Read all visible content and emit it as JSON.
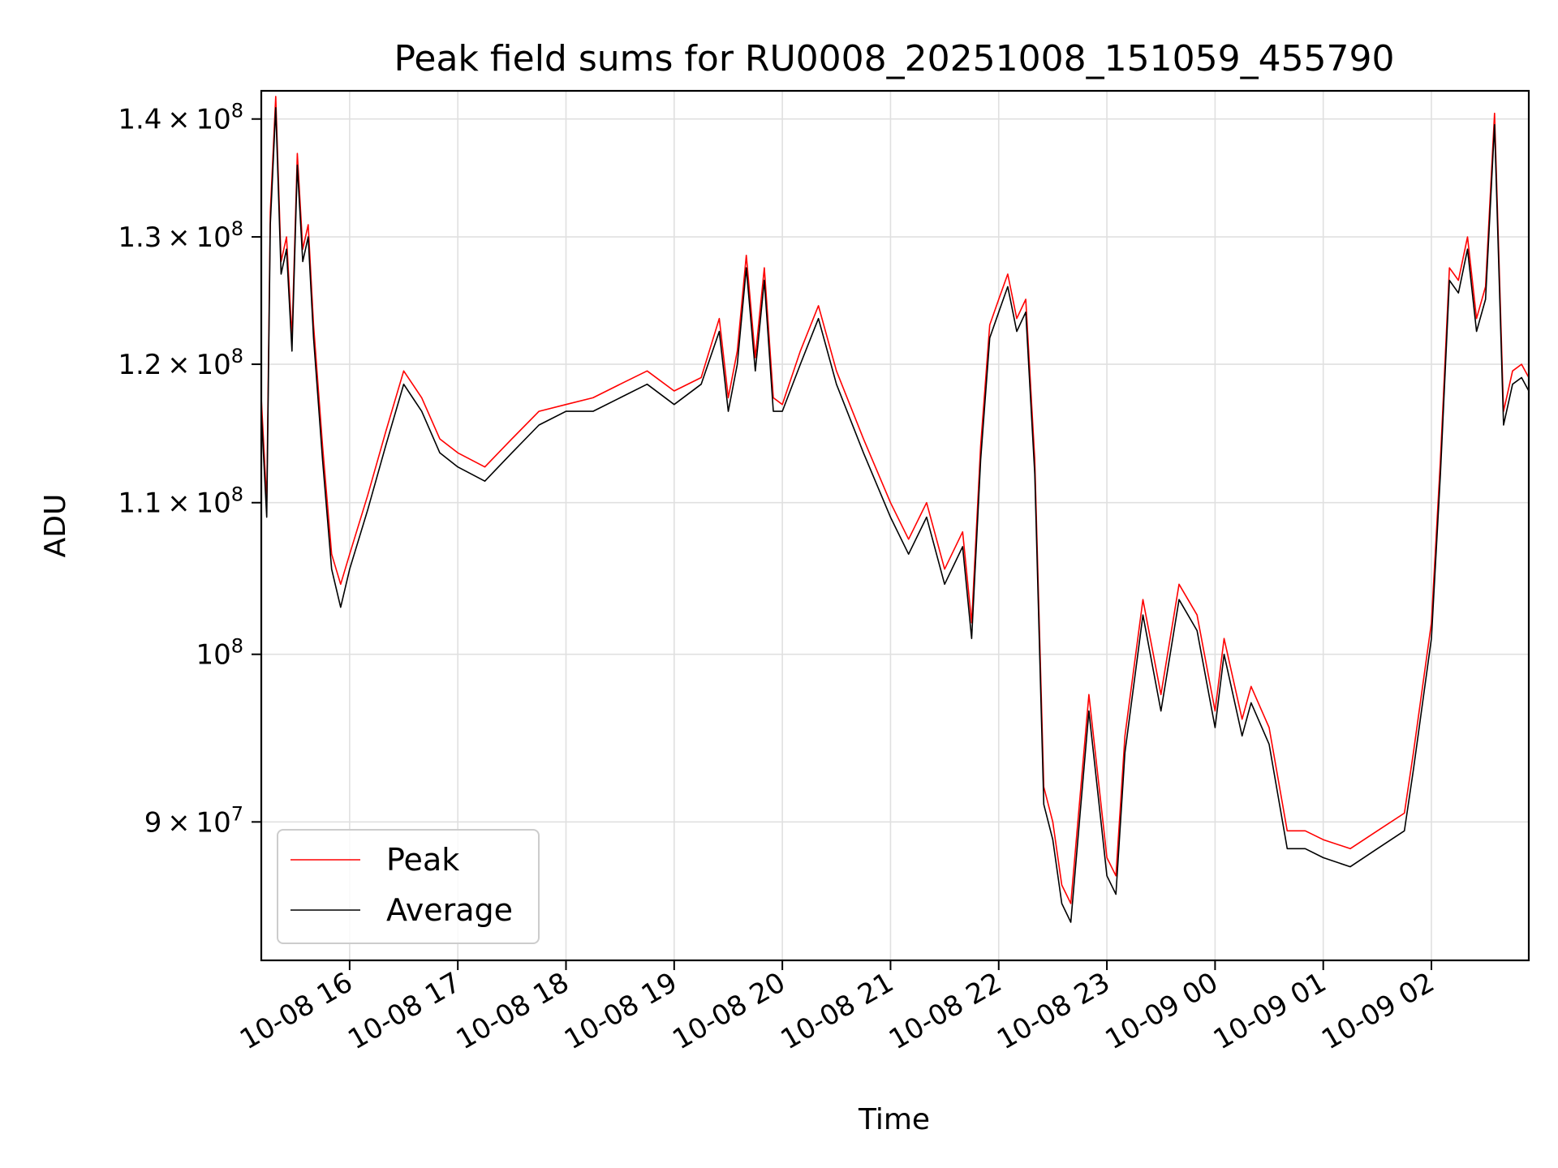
{
  "chart_data": {
    "type": "line",
    "title": "Peak field sums for RU0008_20251008_151059_455790",
    "xlabel": "Time",
    "ylabel": "ADU",
    "yscale": "log",
    "grid": true,
    "legend_position": "lower-left",
    "xlim": [
      "2025-10-08 15:11",
      "2025-10-09 02:54"
    ],
    "ylim": [
      82500000,
      142500000
    ],
    "x_ticks": [
      "10-08 16",
      "10-08 17",
      "10-08 18",
      "10-08 19",
      "10-08 20",
      "10-08 21",
      "10-08 22",
      "10-08 23",
      "10-09 00",
      "10-09 01",
      "10-09 02"
    ],
    "y_ticks": [
      {
        "value": 90000000,
        "mantissa": "9",
        "exponent": "7"
      },
      {
        "value": 100000000,
        "mantissa": "",
        "exponent": "8"
      },
      {
        "value": 110000000,
        "mantissa": "1.1",
        "exponent": "8"
      },
      {
        "value": 120000000,
        "mantissa": "1.2",
        "exponent": "8"
      },
      {
        "value": 130000000,
        "mantissa": "1.3",
        "exponent": "8"
      },
      {
        "value": 140000000,
        "mantissa": "1.4",
        "exponent": "8"
      }
    ],
    "x": [
      "2025-10-08 15:11",
      "2025-10-08 15:14",
      "2025-10-08 15:16",
      "2025-10-08 15:19",
      "2025-10-08 15:22",
      "2025-10-08 15:25",
      "2025-10-08 15:28",
      "2025-10-08 15:31",
      "2025-10-08 15:34",
      "2025-10-08 15:37",
      "2025-10-08 15:40",
      "2025-10-08 15:45",
      "2025-10-08 15:50",
      "2025-10-08 15:55",
      "2025-10-08 16:00",
      "2025-10-08 16:10",
      "2025-10-08 16:20",
      "2025-10-08 16:30",
      "2025-10-08 16:40",
      "2025-10-08 16:50",
      "2025-10-08 17:00",
      "2025-10-08 17:15",
      "2025-10-08 17:30",
      "2025-10-08 17:45",
      "2025-10-08 18:00",
      "2025-10-08 18:15",
      "2025-10-08 18:30",
      "2025-10-08 18:45",
      "2025-10-08 19:00",
      "2025-10-08 19:15",
      "2025-10-08 19:25",
      "2025-10-08 19:30",
      "2025-10-08 19:35",
      "2025-10-08 19:40",
      "2025-10-08 19:45",
      "2025-10-08 19:50",
      "2025-10-08 19:55",
      "2025-10-08 20:00",
      "2025-10-08 20:10",
      "2025-10-08 20:20",
      "2025-10-08 20:30",
      "2025-10-08 20:45",
      "2025-10-08 21:00",
      "2025-10-08 21:10",
      "2025-10-08 21:20",
      "2025-10-08 21:30",
      "2025-10-08 21:40",
      "2025-10-08 21:45",
      "2025-10-08 21:50",
      "2025-10-08 21:55",
      "2025-10-08 22:00",
      "2025-10-08 22:05",
      "2025-10-08 22:10",
      "2025-10-08 22:15",
      "2025-10-08 22:20",
      "2025-10-08 22:25",
      "2025-10-08 22:30",
      "2025-10-08 22:35",
      "2025-10-08 22:40",
      "2025-10-08 22:50",
      "2025-10-08 23:00",
      "2025-10-08 23:05",
      "2025-10-08 23:10",
      "2025-10-08 23:20",
      "2025-10-08 23:30",
      "2025-10-08 23:40",
      "2025-10-08 23:50",
      "2025-10-09 00:00",
      "2025-10-09 00:05",
      "2025-10-09 00:15",
      "2025-10-09 00:20",
      "2025-10-09 00:30",
      "2025-10-09 00:40",
      "2025-10-09 00:50",
      "2025-10-09 01:00",
      "2025-10-09 01:15",
      "2025-10-09 01:30",
      "2025-10-09 01:45",
      "2025-10-09 01:50",
      "2025-10-09 02:00",
      "2025-10-09 02:05",
      "2025-10-09 02:10",
      "2025-10-09 02:15",
      "2025-10-09 02:20",
      "2025-10-09 02:25",
      "2025-10-09 02:30",
      "2025-10-09 02:35",
      "2025-10-09 02:40",
      "2025-10-09 02:45",
      "2025-10-09 02:50",
      "2025-10-09 02:54"
    ],
    "series": [
      {
        "name": "Peak",
        "color": "#ff0000",
        "values": [
          117500000,
          110000000,
          132000000,
          142000000,
          128000000,
          130000000,
          122000000,
          137000000,
          129000000,
          131000000,
          123000000,
          114000000,
          106500000,
          104500000,
          106500000,
          110500000,
          115000000,
          119500000,
          117500000,
          114500000,
          113500000,
          112500000,
          114500000,
          116500000,
          117000000,
          117500000,
          118500000,
          119500000,
          118000000,
          119000000,
          123500000,
          117500000,
          121000000,
          128500000,
          120500000,
          127500000,
          117500000,
          117000000,
          121000000,
          124500000,
          119500000,
          114500000,
          110000000,
          107500000,
          110000000,
          105500000,
          108000000,
          102000000,
          114000000,
          123000000,
          125000000,
          127000000,
          123500000,
          125000000,
          113000000,
          92000000,
          90000000,
          86500000,
          85500000,
          97500000,
          88000000,
          87000000,
          95000000,
          103500000,
          97500000,
          104500000,
          102500000,
          96500000,
          101000000,
          96000000,
          98000000,
          95500000,
          89500000,
          89500000,
          89000000,
          88500000,
          89500000,
          90500000,
          94000000,
          102000000,
          113000000,
          127500000,
          126500000,
          130000000,
          123500000,
          126000000,
          140500000,
          116500000,
          119500000,
          120000000,
          119000000
        ]
      },
      {
        "name": "Average",
        "color": "#000000",
        "values": [
          116500000,
          109000000,
          131000000,
          141000000,
          127000000,
          129000000,
          121000000,
          136000000,
          128000000,
          130000000,
          122000000,
          113000000,
          105500000,
          103000000,
          105500000,
          109500000,
          114000000,
          118500000,
          116500000,
          113500000,
          112500000,
          111500000,
          113500000,
          115500000,
          116500000,
          116500000,
          117500000,
          118500000,
          117000000,
          118500000,
          122500000,
          116500000,
          120000000,
          127500000,
          119500000,
          126500000,
          116500000,
          116500000,
          120000000,
          123500000,
          118500000,
          113500000,
          109000000,
          106500000,
          109000000,
          104500000,
          107000000,
          101000000,
          113000000,
          122000000,
          124000000,
          126000000,
          122500000,
          124000000,
          112000000,
          91000000,
          89000000,
          85500000,
          84500000,
          96500000,
          87000000,
          86000000,
          94000000,
          102500000,
          96500000,
          103500000,
          101500000,
          95500000,
          100000000,
          95000000,
          97000000,
          94500000,
          88500000,
          88500000,
          88000000,
          87500000,
          88500000,
          89500000,
          93000000,
          101000000,
          112000000,
          126500000,
          125500000,
          129000000,
          122500000,
          125000000,
          139500000,
          115500000,
          118500000,
          119000000,
          118000000
        ]
      }
    ]
  }
}
